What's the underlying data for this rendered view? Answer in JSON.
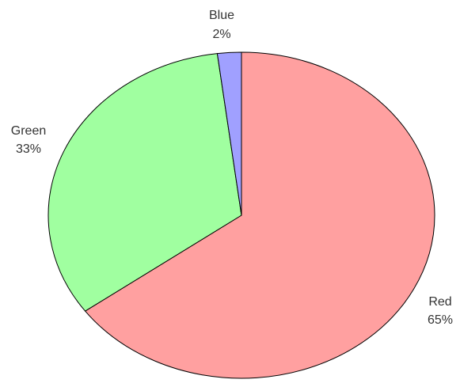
{
  "chart_data": {
    "type": "pie",
    "title": "",
    "slices": [
      {
        "label": "Red",
        "value": 65,
        "percent_label": "65%",
        "color": "#ffa0a0"
      },
      {
        "label": "Green",
        "value": 33,
        "percent_label": "33%",
        "color": "#a0ffa0"
      },
      {
        "label": "Blue",
        "value": 2,
        "percent_label": "2%",
        "color": "#a0a0ff"
      }
    ],
    "start_angle": "12 o'clock",
    "direction": "clockwise",
    "legend": "none",
    "labels": "outside"
  }
}
